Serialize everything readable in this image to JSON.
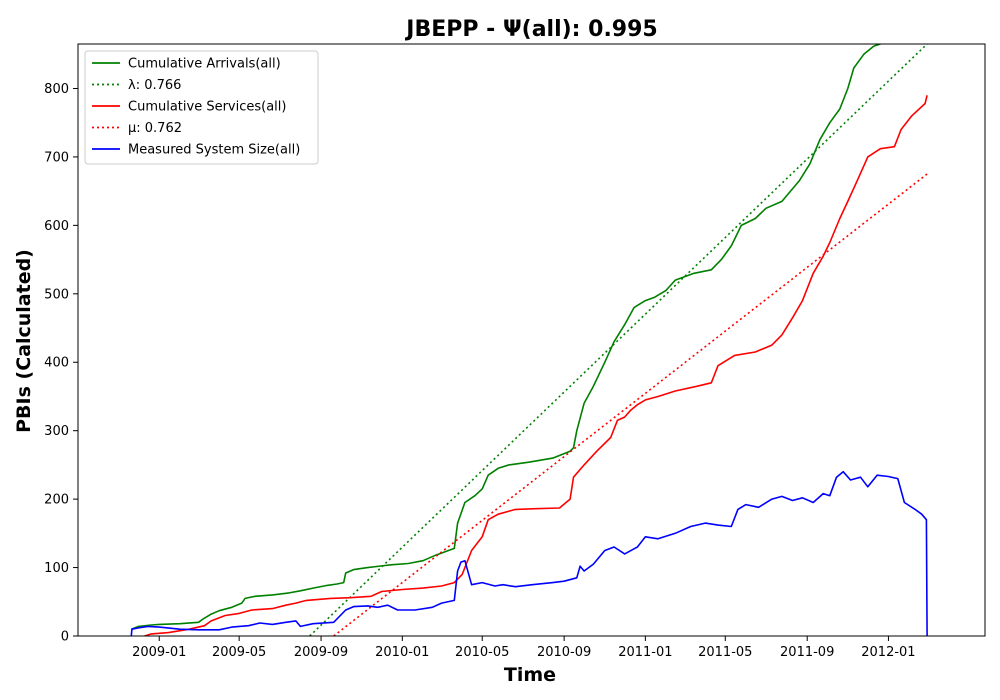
{
  "chart_data": {
    "type": "line",
    "title": "JBEPP -  Ψ(all): 0.995",
    "xlabel": "Time",
    "ylabel": "PBIs (Calculated)",
    "xlim": [
      "2008-09-01",
      "2012-05-25"
    ],
    "ylim": [
      0,
      865
    ],
    "x_ticks": [
      "2009-01",
      "2009-05",
      "2009-09",
      "2010-01",
      "2010-05",
      "2010-09",
      "2011-01",
      "2011-05",
      "2011-09",
      "2012-01"
    ],
    "y_ticks": [
      0,
      100,
      200,
      300,
      400,
      500,
      600,
      700,
      800
    ],
    "grid": false,
    "legend_position": "top-left",
    "series": [
      {
        "name": "Cumulative Arrivals(all)",
        "color": "#008000",
        "style": "solid",
        "points": [
          [
            "2008-11-20",
            10
          ],
          [
            "2008-12-01",
            14
          ],
          [
            "2008-12-20",
            16
          ],
          [
            "2009-01-01",
            17
          ],
          [
            "2009-02-01",
            18
          ],
          [
            "2009-03-01",
            20
          ],
          [
            "2009-03-08",
            25
          ],
          [
            "2009-03-20",
            32
          ],
          [
            "2009-04-01",
            37
          ],
          [
            "2009-04-20",
            42
          ],
          [
            "2009-05-05",
            48
          ],
          [
            "2009-05-10",
            55
          ],
          [
            "2009-05-25",
            58
          ],
          [
            "2009-06-20",
            60
          ],
          [
            "2009-07-15",
            63
          ],
          [
            "2009-08-01",
            66
          ],
          [
            "2009-08-20",
            70
          ],
          [
            "2009-09-10",
            74
          ],
          [
            "2009-09-25",
            76
          ],
          [
            "2009-10-05",
            78
          ],
          [
            "2009-10-08",
            92
          ],
          [
            "2009-10-20",
            97
          ],
          [
            "2009-11-10",
            100
          ],
          [
            "2009-12-15",
            104
          ],
          [
            "2010-01-10",
            106
          ],
          [
            "2010-02-01",
            110
          ],
          [
            "2010-02-20",
            118
          ],
          [
            "2010-03-20",
            128
          ],
          [
            "2010-03-25",
            165
          ],
          [
            "2010-04-05",
            195
          ],
          [
            "2010-04-20",
            205
          ],
          [
            "2010-05-01",
            215
          ],
          [
            "2010-05-10",
            235
          ],
          [
            "2010-05-25",
            245
          ],
          [
            "2010-06-10",
            250
          ],
          [
            "2010-07-10",
            254
          ],
          [
            "2010-08-15",
            260
          ],
          [
            "2010-09-10",
            270
          ],
          [
            "2010-09-15",
            275
          ],
          [
            "2010-09-20",
            300
          ],
          [
            "2010-10-01",
            340
          ],
          [
            "2010-10-15",
            365
          ],
          [
            "2010-11-01",
            400
          ],
          [
            "2010-11-15",
            430
          ],
          [
            "2010-12-01",
            455
          ],
          [
            "2010-12-15",
            480
          ],
          [
            "2011-01-01",
            490
          ],
          [
            "2011-01-15",
            495
          ],
          [
            "2011-02-01",
            505
          ],
          [
            "2011-02-15",
            520
          ],
          [
            "2011-03-15",
            530
          ],
          [
            "2011-04-10",
            535
          ],
          [
            "2011-04-25",
            550
          ],
          [
            "2011-05-10",
            570
          ],
          [
            "2011-05-25",
            600
          ],
          [
            "2011-06-15",
            610
          ],
          [
            "2011-07-01",
            625
          ],
          [
            "2011-07-25",
            635
          ],
          [
            "2011-08-20",
            665
          ],
          [
            "2011-09-05",
            690
          ],
          [
            "2011-09-20",
            725
          ],
          [
            "2011-10-05",
            750
          ],
          [
            "2011-10-20",
            770
          ],
          [
            "2011-11-01",
            800
          ],
          [
            "2011-11-10",
            830
          ],
          [
            "2011-11-25",
            850
          ],
          [
            "2011-12-10",
            862
          ],
          [
            "2011-12-20",
            865
          ]
        ]
      },
      {
        "name": "λ: 0.766",
        "color": "#008000",
        "style": "dotted",
        "points": [
          [
            "2009-08-15",
            0
          ],
          [
            "2012-02-28",
            865
          ]
        ]
      },
      {
        "name": "Cumulative Services(all)",
        "color": "#ff0000",
        "style": "solid",
        "points": [
          [
            "2008-12-10",
            0
          ],
          [
            "2008-12-20",
            3
          ],
          [
            "2009-01-15",
            5
          ],
          [
            "2009-02-15",
            10
          ],
          [
            "2009-03-10",
            15
          ],
          [
            "2009-03-20",
            22
          ],
          [
            "2009-04-10",
            30
          ],
          [
            "2009-05-01",
            33
          ],
          [
            "2009-05-20",
            38
          ],
          [
            "2009-06-20",
            40
          ],
          [
            "2009-07-10",
            45
          ],
          [
            "2009-07-25",
            48
          ],
          [
            "2009-08-10",
            52
          ],
          [
            "2009-09-15",
            55
          ],
          [
            "2009-10-15",
            56
          ],
          [
            "2009-11-15",
            58
          ],
          [
            "2009-12-01",
            65
          ],
          [
            "2010-01-01",
            68
          ],
          [
            "2010-02-01",
            70
          ],
          [
            "2010-03-01",
            73
          ],
          [
            "2010-03-20",
            78
          ],
          [
            "2010-04-01",
            90
          ],
          [
            "2010-04-15",
            125
          ],
          [
            "2010-05-01",
            145
          ],
          [
            "2010-05-10",
            170
          ],
          [
            "2010-05-25",
            178
          ],
          [
            "2010-06-20",
            185
          ],
          [
            "2010-07-20",
            186
          ],
          [
            "2010-08-25",
            187
          ],
          [
            "2010-09-10",
            200
          ],
          [
            "2010-09-15",
            232
          ],
          [
            "2010-10-01",
            250
          ],
          [
            "2010-10-20",
            270
          ],
          [
            "2010-11-10",
            290
          ],
          [
            "2010-11-20",
            315
          ],
          [
            "2010-12-01",
            320
          ],
          [
            "2010-12-10",
            330
          ],
          [
            "2010-12-20",
            338
          ],
          [
            "2011-01-01",
            345
          ],
          [
            "2011-01-20",
            350
          ],
          [
            "2011-02-15",
            358
          ],
          [
            "2011-03-20",
            365
          ],
          [
            "2011-04-10",
            370
          ],
          [
            "2011-04-20",
            395
          ],
          [
            "2011-05-15",
            410
          ],
          [
            "2011-06-15",
            415
          ],
          [
            "2011-07-10",
            425
          ],
          [
            "2011-07-25",
            440
          ],
          [
            "2011-08-10",
            465
          ],
          [
            "2011-08-25",
            490
          ],
          [
            "2011-09-10",
            530
          ],
          [
            "2011-09-25",
            555
          ],
          [
            "2011-10-05",
            575
          ],
          [
            "2011-10-20",
            610
          ],
          [
            "2011-11-01",
            635
          ],
          [
            "2011-11-15",
            665
          ],
          [
            "2011-12-01",
            700
          ],
          [
            "2011-12-20",
            712
          ],
          [
            "2012-01-10",
            715
          ],
          [
            "2012-01-20",
            740
          ],
          [
            "2012-02-05",
            760
          ],
          [
            "2012-02-25",
            778
          ],
          [
            "2012-02-28",
            790
          ]
        ]
      },
      {
        "name": "μ: 0.762",
        "color": "#ff0000",
        "style": "dotted",
        "points": [
          [
            "2009-09-20",
            0
          ],
          [
            "2012-02-28",
            675
          ]
        ]
      },
      {
        "name": "Measured System Size(all)",
        "color": "#0000ff",
        "style": "solid",
        "points": [
          [
            "2008-11-20",
            0
          ],
          [
            "2008-11-21",
            10
          ],
          [
            "2008-12-01",
            12
          ],
          [
            "2008-12-15",
            14
          ],
          [
            "2009-01-01",
            13
          ],
          [
            "2009-02-01",
            10
          ],
          [
            "2009-03-01",
            9
          ],
          [
            "2009-04-01",
            9
          ],
          [
            "2009-04-20",
            13
          ],
          [
            "2009-05-15",
            15
          ],
          [
            "2009-06-01",
            19
          ],
          [
            "2009-06-20",
            17
          ],
          [
            "2009-07-10",
            20
          ],
          [
            "2009-07-25",
            22
          ],
          [
            "2009-08-01",
            14
          ],
          [
            "2009-08-20",
            18
          ],
          [
            "2009-09-20",
            20
          ],
          [
            "2009-10-08",
            38
          ],
          [
            "2009-10-20",
            43
          ],
          [
            "2009-11-10",
            44
          ],
          [
            "2009-11-25",
            42
          ],
          [
            "2009-12-10",
            45
          ],
          [
            "2009-12-25",
            38
          ],
          [
            "2010-01-20",
            38
          ],
          [
            "2010-02-15",
            42
          ],
          [
            "2010-03-01",
            48
          ],
          [
            "2010-03-20",
            52
          ],
          [
            "2010-03-25",
            95
          ],
          [
            "2010-03-30",
            108
          ],
          [
            "2010-04-05",
            110
          ],
          [
            "2010-04-15",
            75
          ],
          [
            "2010-05-01",
            78
          ],
          [
            "2010-05-20",
            73
          ],
          [
            "2010-06-01",
            75
          ],
          [
            "2010-06-20",
            72
          ],
          [
            "2010-07-15",
            75
          ],
          [
            "2010-08-15",
            78
          ],
          [
            "2010-09-01",
            80
          ],
          [
            "2010-09-20",
            85
          ],
          [
            "2010-09-25",
            102
          ],
          [
            "2010-10-01",
            95
          ],
          [
            "2010-10-15",
            105
          ],
          [
            "2010-11-01",
            125
          ],
          [
            "2010-11-15",
            130
          ],
          [
            "2010-12-01",
            120
          ],
          [
            "2010-12-20",
            130
          ],
          [
            "2011-01-01",
            145
          ],
          [
            "2011-01-20",
            142
          ],
          [
            "2011-02-15",
            150
          ],
          [
            "2011-03-10",
            160
          ],
          [
            "2011-04-01",
            165
          ],
          [
            "2011-04-20",
            162
          ],
          [
            "2011-05-10",
            160
          ],
          [
            "2011-05-20",
            185
          ],
          [
            "2011-06-01",
            192
          ],
          [
            "2011-06-20",
            188
          ],
          [
            "2011-07-10",
            200
          ],
          [
            "2011-07-25",
            204
          ],
          [
            "2011-08-10",
            198
          ],
          [
            "2011-08-25",
            202
          ],
          [
            "2011-09-10",
            195
          ],
          [
            "2011-09-25",
            208
          ],
          [
            "2011-10-05",
            205
          ],
          [
            "2011-10-15",
            232
          ],
          [
            "2011-10-25",
            240
          ],
          [
            "2011-11-05",
            228
          ],
          [
            "2011-11-20",
            232
          ],
          [
            "2011-12-01",
            218
          ],
          [
            "2011-12-15",
            235
          ],
          [
            "2012-01-01",
            233
          ],
          [
            "2012-01-15",
            230
          ],
          [
            "2012-01-25",
            195
          ],
          [
            "2012-02-10",
            185
          ],
          [
            "2012-02-20",
            178
          ],
          [
            "2012-02-27",
            170
          ],
          [
            "2012-02-28",
            0
          ]
        ]
      }
    ]
  }
}
